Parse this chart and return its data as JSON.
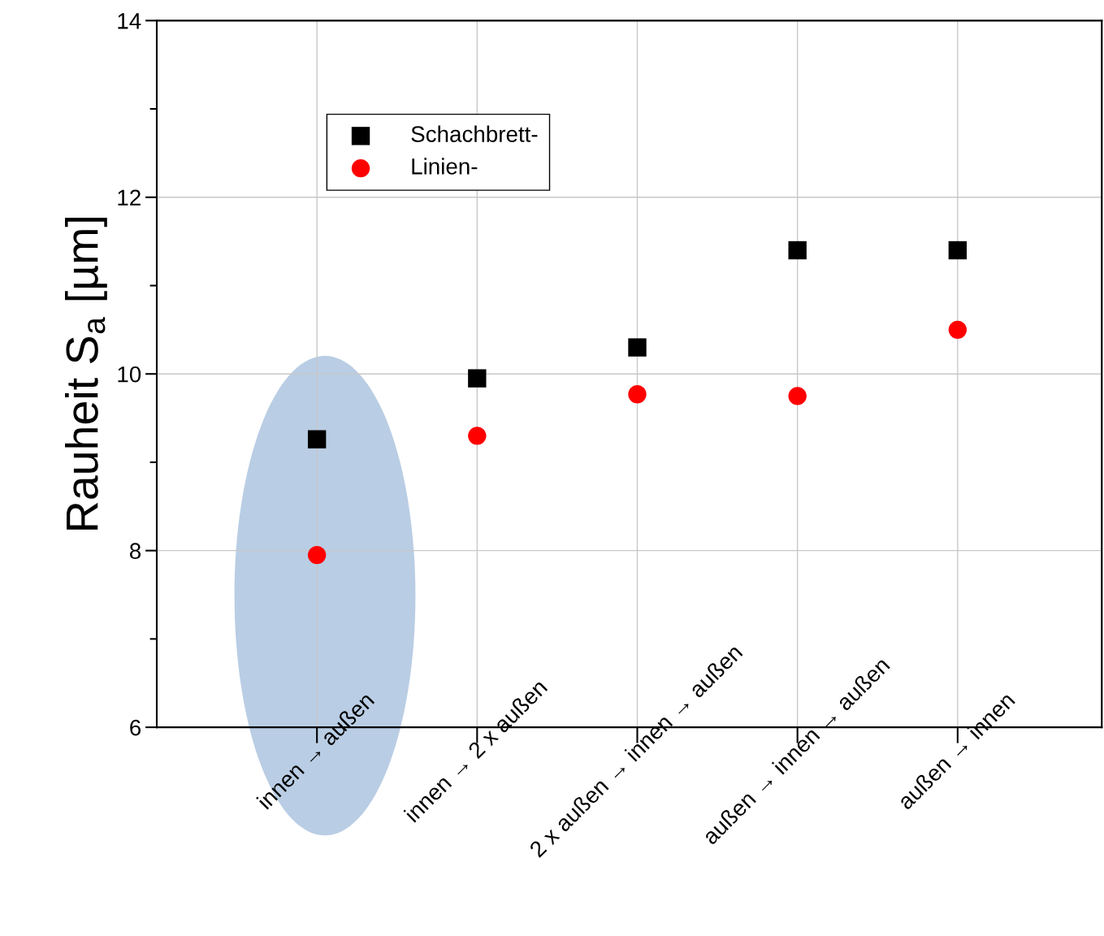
{
  "chart_data": {
    "type": "scatter",
    "ylabel": "Rauheit S$_{a}$ [µm]",
    "categories": [
      "innen → außen",
      "innen → 2 x außen",
      "2 x außen → innen → außen",
      "außen → innen → außen",
      "außen → innen"
    ],
    "series": [
      {
        "name": "Schachbrett-",
        "color": "#000000",
        "marker": "square",
        "values": [
          9.26,
          9.95,
          10.3,
          11.4,
          11.4
        ]
      },
      {
        "name": "Linien-",
        "color": "#ff0000",
        "marker": "circle",
        "values": [
          7.95,
          9.3,
          9.77,
          9.75,
          10.5
        ]
      }
    ],
    "ylim": [
      6,
      14
    ],
    "yticks": [
      6,
      8,
      10,
      12,
      14
    ],
    "grid": true,
    "legend": "top left"
  }
}
